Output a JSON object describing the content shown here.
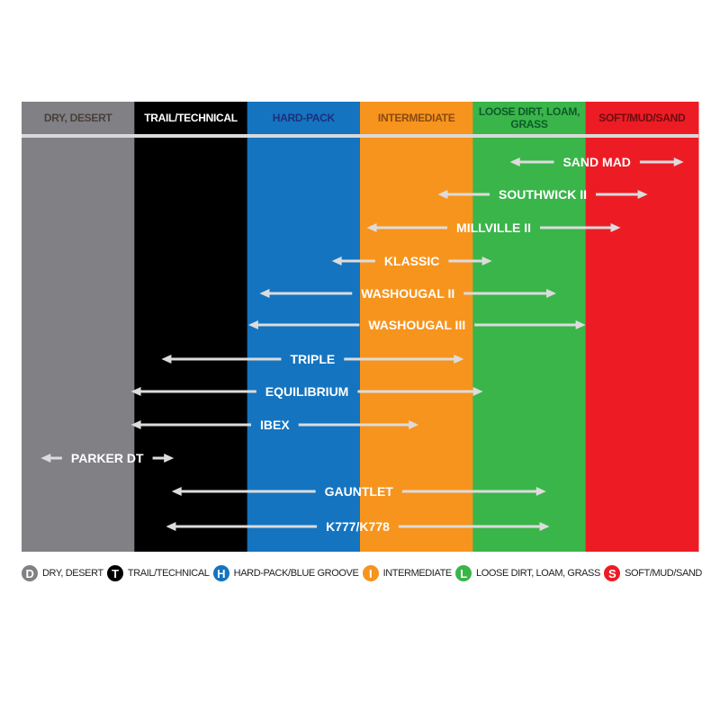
{
  "chart_data": {
    "type": "range",
    "columns": [
      {
        "key": "D",
        "label": "DRY, DESERT",
        "color": "#808085",
        "text_color": "#4a3f3a"
      },
      {
        "key": "T",
        "label": "TRAIL/TECHNICAL",
        "color": "#000000",
        "text_color": "#ffffff"
      },
      {
        "key": "H",
        "label": "HARD-PACK",
        "color": "#1474c0",
        "text_color": "#1f2f7a"
      },
      {
        "key": "I",
        "label": "INTERMEDIATE",
        "color": "#f7941d",
        "text_color": "#8a4a12"
      },
      {
        "key": "L",
        "label": "LOOSE DIRT, LOAM, GRASS",
        "color": "#3ab54a",
        "text_color": "#0e5a2a"
      },
      {
        "key": "S",
        "label": "SOFT/MUD/SAND",
        "color": "#ed1c24",
        "text_color": "#6b0d10"
      }
    ],
    "range_units": "terrain column index (0 = left edge of DRY, DESERT, 6 = right edge of SOFT/MUD/SAND)",
    "tires": [
      {
        "name": "SAND MAD",
        "start": 4.33,
        "end": 5.87
      },
      {
        "name": "SOUTHWICK II",
        "start": 3.69,
        "end": 5.55
      },
      {
        "name": "MILLVILLE II",
        "start": 3.06,
        "end": 5.31
      },
      {
        "name": "KLASSIC",
        "start": 2.75,
        "end": 4.17
      },
      {
        "name": "WASHOUGAL II",
        "start": 2.11,
        "end": 4.74
      },
      {
        "name": "WASHOUGAL III",
        "start": 2.01,
        "end": 5.0
      },
      {
        "name": "TRIPLE",
        "start": 1.24,
        "end": 3.92
      },
      {
        "name": "EQUILIBRIUM",
        "start": 0.97,
        "end": 4.09
      },
      {
        "name": "IBEX",
        "start": 0.97,
        "end": 3.52
      },
      {
        "name": "PARKER DT",
        "start": 0.17,
        "end": 1.35
      },
      {
        "name": "GAUNTLET",
        "start": 1.33,
        "end": 4.65
      },
      {
        "name": "K777/K778",
        "start": 1.28,
        "end": 4.68
      }
    ],
    "arrow_color": "#dcdcdc"
  },
  "legend": [
    {
      "letter": "D",
      "label": "DRY, DESERT",
      "color": "#808085"
    },
    {
      "letter": "T",
      "label": "TRAIL/TECHNICAL",
      "color": "#000000"
    },
    {
      "letter": "H",
      "label": "HARD-PACK/BLUE GROOVE",
      "color": "#1474c0"
    },
    {
      "letter": "I",
      "label": "INTERMEDIATE",
      "color": "#f7941d"
    },
    {
      "letter": "L",
      "label": "LOOSE DIRT, LOAM, GRASS",
      "color": "#3ab54a"
    },
    {
      "letter": "S",
      "label": "SOFT/MUD/SAND",
      "color": "#ed1c24"
    }
  ]
}
